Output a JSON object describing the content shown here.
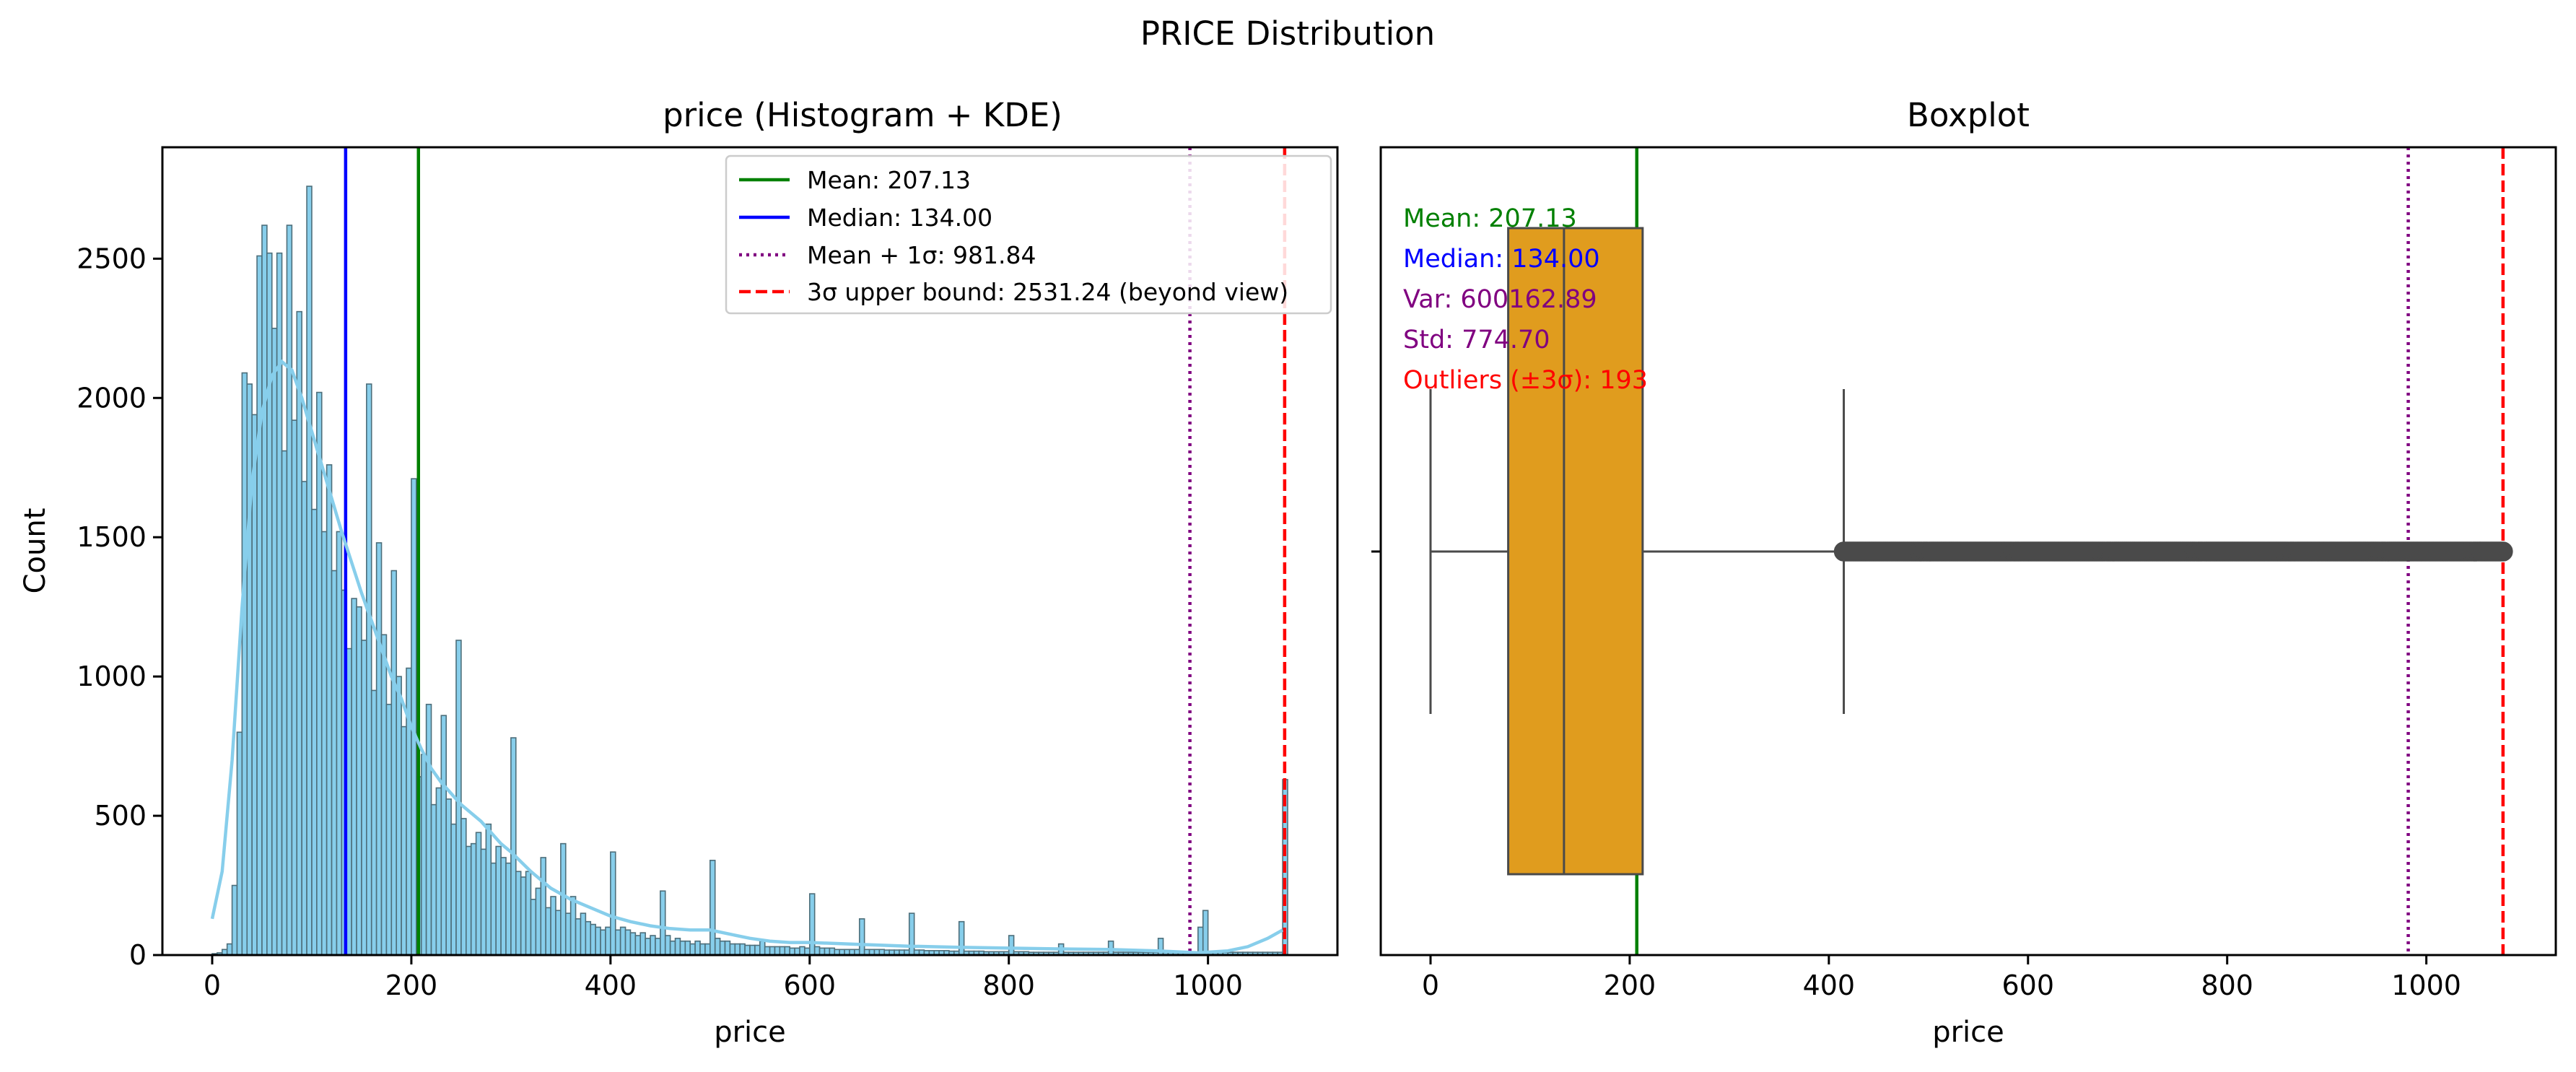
{
  "figure": {
    "title": "PRICE Distribution"
  },
  "chart_data": [
    {
      "type": "bar",
      "title": "price (Histogram + KDE)",
      "xlabel": "price",
      "ylabel": "Count",
      "xlim": [
        -50,
        1130
      ],
      "ylim": [
        0,
        2900
      ],
      "xticks": [
        0,
        200,
        400,
        600,
        800,
        1000
      ],
      "yticks": [
        0,
        500,
        1000,
        1500,
        2000,
        2500
      ],
      "grid": false,
      "legend_position": "upper-right",
      "bar_color": "#87ceeb",
      "bar_edge": "#4d6e7a",
      "kde_color": "#87ceeb",
      "bins": [
        [
          0,
          5
        ],
        [
          5,
          8
        ],
        [
          10,
          20
        ],
        [
          15,
          40
        ],
        [
          20,
          250
        ],
        [
          25,
          800
        ],
        [
          30,
          2090
        ],
        [
          35,
          2050
        ],
        [
          40,
          1940
        ],
        [
          45,
          2510
        ],
        [
          50,
          2620
        ],
        [
          55,
          2520
        ],
        [
          60,
          2250
        ],
        [
          65,
          2520
        ],
        [
          70,
          1810
        ],
        [
          75,
          2620
        ],
        [
          80,
          1920
        ],
        [
          85,
          2310
        ],
        [
          90,
          1700
        ],
        [
          95,
          2760
        ],
        [
          100,
          1600
        ],
        [
          105,
          2020
        ],
        [
          110,
          1520
        ],
        [
          115,
          1760
        ],
        [
          120,
          1380
        ],
        [
          125,
          1520
        ],
        [
          130,
          1310
        ],
        [
          135,
          1100
        ],
        [
          140,
          1280
        ],
        [
          145,
          1250
        ],
        [
          150,
          1130
        ],
        [
          155,
          2050
        ],
        [
          160,
          950
        ],
        [
          165,
          1480
        ],
        [
          170,
          1150
        ],
        [
          175,
          900
        ],
        [
          180,
          1380
        ],
        [
          185,
          1000
        ],
        [
          190,
          820
        ],
        [
          195,
          1030
        ],
        [
          200,
          1710
        ],
        [
          205,
          640
        ],
        [
          210,
          720
        ],
        [
          215,
          900
        ],
        [
          220,
          540
        ],
        [
          225,
          600
        ],
        [
          230,
          860
        ],
        [
          235,
          560
        ],
        [
          240,
          470
        ],
        [
          245,
          1130
        ],
        [
          250,
          490
        ],
        [
          255,
          390
        ],
        [
          260,
          400
        ],
        [
          265,
          440
        ],
        [
          270,
          380
        ],
        [
          275,
          470
        ],
        [
          280,
          330
        ],
        [
          285,
          390
        ],
        [
          290,
          350
        ],
        [
          295,
          330
        ],
        [
          300,
          780
        ],
        [
          305,
          300
        ],
        [
          310,
          280
        ],
        [
          315,
          300
        ],
        [
          320,
          200
        ],
        [
          325,
          240
        ],
        [
          330,
          350
        ],
        [
          335,
          170
        ],
        [
          340,
          210
        ],
        [
          345,
          160
        ],
        [
          350,
          400
        ],
        [
          355,
          150
        ],
        [
          360,
          210
        ],
        [
          365,
          130
        ],
        [
          370,
          150
        ],
        [
          375,
          120
        ],
        [
          380,
          110
        ],
        [
          385,
          100
        ],
        [
          390,
          90
        ],
        [
          395,
          100
        ],
        [
          400,
          370
        ],
        [
          405,
          90
        ],
        [
          410,
          100
        ],
        [
          415,
          90
        ],
        [
          420,
          80
        ],
        [
          425,
          70
        ],
        [
          430,
          80
        ],
        [
          435,
          60
        ],
        [
          440,
          70
        ],
        [
          445,
          60
        ],
        [
          450,
          230
        ],
        [
          455,
          70
        ],
        [
          460,
          50
        ],
        [
          465,
          60
        ],
        [
          470,
          50
        ],
        [
          475,
          50
        ],
        [
          480,
          40
        ],
        [
          485,
          50
        ],
        [
          490,
          40
        ],
        [
          495,
          40
        ],
        [
          500,
          340
        ],
        [
          505,
          60
        ],
        [
          510,
          50
        ],
        [
          515,
          50
        ],
        [
          520,
          40
        ],
        [
          525,
          40
        ],
        [
          530,
          40
        ],
        [
          535,
          35
        ],
        [
          540,
          35
        ],
        [
          545,
          35
        ],
        [
          550,
          50
        ],
        [
          555,
          30
        ],
        [
          560,
          30
        ],
        [
          565,
          30
        ],
        [
          570,
          30
        ],
        [
          575,
          30
        ],
        [
          580,
          25
        ],
        [
          585,
          25
        ],
        [
          590,
          30
        ],
        [
          595,
          25
        ],
        [
          600,
          220
        ],
        [
          605,
          30
        ],
        [
          610,
          25
        ],
        [
          615,
          25
        ],
        [
          620,
          25
        ],
        [
          625,
          20
        ],
        [
          630,
          20
        ],
        [
          635,
          20
        ],
        [
          640,
          20
        ],
        [
          645,
          20
        ],
        [
          650,
          130
        ],
        [
          655,
          20
        ],
        [
          660,
          20
        ],
        [
          665,
          20
        ],
        [
          670,
          20
        ],
        [
          675,
          18
        ],
        [
          680,
          18
        ],
        [
          685,
          18
        ],
        [
          690,
          18
        ],
        [
          695,
          18
        ],
        [
          700,
          150
        ],
        [
          705,
          18
        ],
        [
          710,
          18
        ],
        [
          715,
          16
        ],
        [
          720,
          16
        ],
        [
          725,
          16
        ],
        [
          730,
          16
        ],
        [
          735,
          16
        ],
        [
          740,
          14
        ],
        [
          745,
          14
        ],
        [
          750,
          120
        ],
        [
          755,
          14
        ],
        [
          760,
          14
        ],
        [
          765,
          14
        ],
        [
          770,
          14
        ],
        [
          775,
          12
        ],
        [
          780,
          12
        ],
        [
          785,
          12
        ],
        [
          790,
          12
        ],
        [
          795,
          12
        ],
        [
          800,
          70
        ],
        [
          805,
          12
        ],
        [
          810,
          12
        ],
        [
          815,
          12
        ],
        [
          820,
          10
        ],
        [
          825,
          10
        ],
        [
          830,
          10
        ],
        [
          835,
          10
        ],
        [
          840,
          10
        ],
        [
          845,
          10
        ],
        [
          850,
          40
        ],
        [
          855,
          10
        ],
        [
          860,
          10
        ],
        [
          865,
          10
        ],
        [
          870,
          10
        ],
        [
          875,
          10
        ],
        [
          880,
          10
        ],
        [
          885,
          10
        ],
        [
          890,
          10
        ],
        [
          895,
          10
        ],
        [
          900,
          50
        ],
        [
          905,
          10
        ],
        [
          910,
          10
        ],
        [
          915,
          10
        ],
        [
          920,
          10
        ],
        [
          925,
          10
        ],
        [
          930,
          10
        ],
        [
          935,
          10
        ],
        [
          940,
          10
        ],
        [
          945,
          10
        ],
        [
          950,
          60
        ],
        [
          955,
          10
        ],
        [
          960,
          10
        ],
        [
          965,
          10
        ],
        [
          970,
          10
        ],
        [
          975,
          10
        ],
        [
          980,
          10
        ],
        [
          985,
          10
        ],
        [
          990,
          100
        ],
        [
          995,
          160
        ],
        [
          1000,
          10
        ],
        [
          1005,
          10
        ],
        [
          1010,
          10
        ],
        [
          1015,
          10
        ],
        [
          1020,
          10
        ],
        [
          1025,
          10
        ],
        [
          1030,
          10
        ],
        [
          1035,
          10
        ],
        [
          1040,
          10
        ],
        [
          1045,
          10
        ],
        [
          1050,
          10
        ],
        [
          1055,
          10
        ],
        [
          1060,
          10
        ],
        [
          1065,
          10
        ],
        [
          1070,
          10
        ],
        [
          1075,
          630
        ]
      ],
      "kde": [
        [
          0,
          130
        ],
        [
          10,
          300
        ],
        [
          20,
          700
        ],
        [
          30,
          1250
        ],
        [
          40,
          1700
        ],
        [
          50,
          1950
        ],
        [
          60,
          2080
        ],
        [
          70,
          2130
        ],
        [
          80,
          2100
        ],
        [
          90,
          2000
        ],
        [
          100,
          1880
        ],
        [
          110,
          1760
        ],
        [
          120,
          1640
        ],
        [
          130,
          1520
        ],
        [
          140,
          1410
        ],
        [
          150,
          1300
        ],
        [
          160,
          1200
        ],
        [
          170,
          1100
        ],
        [
          180,
          1000
        ],
        [
          190,
          920
        ],
        [
          200,
          820
        ],
        [
          210,
          740
        ],
        [
          220,
          670
        ],
        [
          230,
          620
        ],
        [
          240,
          580
        ],
        [
          250,
          540
        ],
        [
          260,
          510
        ],
        [
          270,
          480
        ],
        [
          280,
          440
        ],
        [
          290,
          400
        ],
        [
          300,
          370
        ],
        [
          320,
          300
        ],
        [
          340,
          240
        ],
        [
          360,
          200
        ],
        [
          380,
          170
        ],
        [
          400,
          140
        ],
        [
          420,
          120
        ],
        [
          440,
          105
        ],
        [
          460,
          95
        ],
        [
          480,
          90
        ],
        [
          500,
          90
        ],
        [
          520,
          75
        ],
        [
          540,
          60
        ],
        [
          560,
          50
        ],
        [
          580,
          45
        ],
        [
          600,
          45
        ],
        [
          650,
          38
        ],
        [
          700,
          32
        ],
        [
          750,
          28
        ],
        [
          800,
          25
        ],
        [
          850,
          22
        ],
        [
          900,
          20
        ],
        [
          950,
          15
        ],
        [
          990,
          8
        ],
        [
          1020,
          15
        ],
        [
          1040,
          30
        ],
        [
          1060,
          60
        ],
        [
          1075,
          90
        ]
      ],
      "reference_lines": [
        {
          "name": "mean",
          "label": "Mean: 207.13",
          "x": 207.13,
          "color": "#008000",
          "style": "solid"
        },
        {
          "name": "median",
          "label": "Median: 134.00",
          "x": 134.0,
          "color": "#0000ff",
          "style": "solid"
        },
        {
          "name": "mean-plus-1sigma",
          "label": "Mean + 1σ: 981.84",
          "x": 981.84,
          "color": "#800080",
          "style": "dotted"
        },
        {
          "name": "upper-3sigma",
          "label": "3σ upper bound: 2531.24 (beyond view)",
          "x": 1077,
          "color": "#ff0000",
          "style": "dashed"
        }
      ]
    },
    {
      "type": "boxplot",
      "title": "Boxplot",
      "xlabel": "price",
      "xlim": [
        -50,
        1130
      ],
      "xticks": [
        0,
        200,
        400,
        600,
        800,
        1000
      ],
      "box": {
        "whisker_low": 0,
        "q1": 78,
        "median": 134,
        "q3": 213,
        "whisker_high": 415,
        "outliers_from": 415,
        "outliers_to": 1077
      },
      "box_color": "#e09c1e",
      "line_color": "#4a4a4a",
      "reference_lines": [
        {
          "name": "mean",
          "x": 207.13,
          "color": "#008000",
          "style": "solid"
        },
        {
          "name": "mean-plus-1sigma",
          "x": 981.84,
          "color": "#800080",
          "style": "dotted"
        },
        {
          "name": "upper-3sigma",
          "x": 1077,
          "color": "#ff0000",
          "style": "dashed"
        }
      ],
      "annotations": [
        {
          "text": "Mean: 207.13",
          "color": "#008000"
        },
        {
          "text": "Median: 134.00",
          "color": "#0000ff"
        },
        {
          "text": "Var: 600162.89",
          "color": "#800080"
        },
        {
          "text": "Std: 774.70",
          "color": "#800080"
        },
        {
          "text": "Outliers (±3σ): 193",
          "color": "#ff0000"
        }
      ]
    }
  ]
}
